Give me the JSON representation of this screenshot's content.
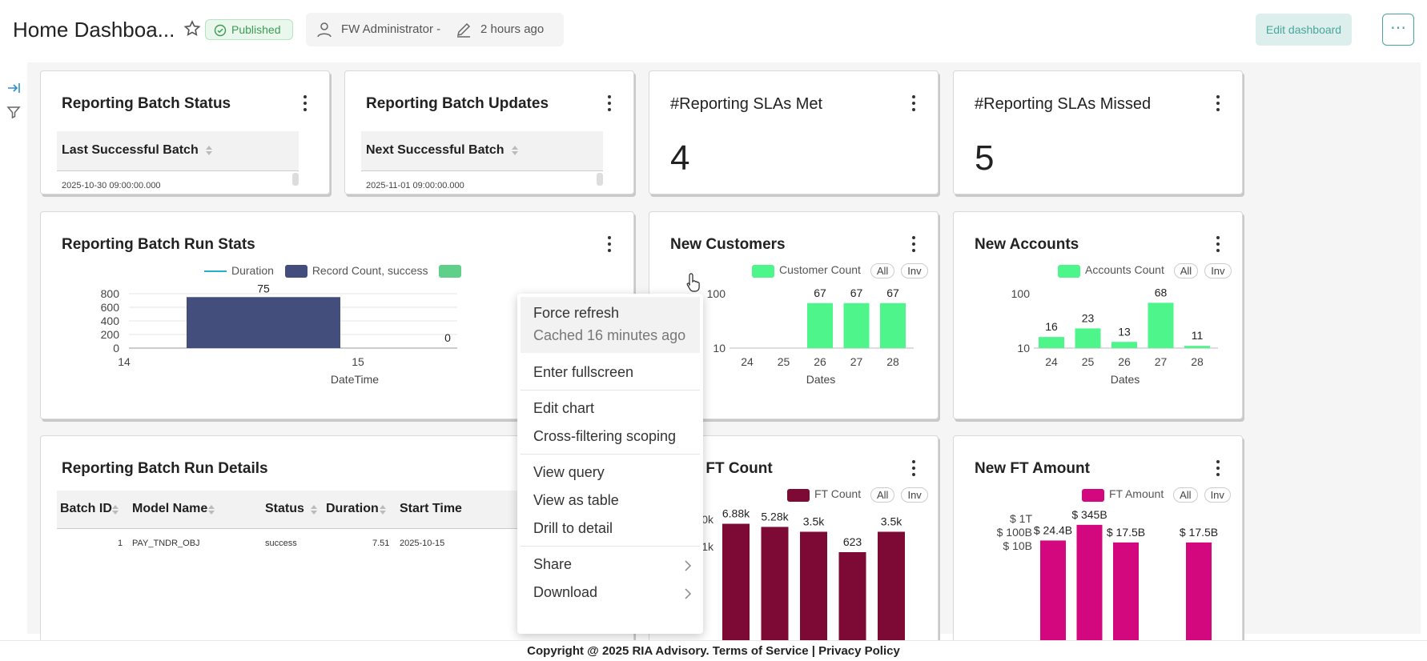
{
  "header": {
    "title": "Home Dashboa...",
    "status_badge": "Published",
    "owner": "FW Administrator -",
    "modified": "2 hours ago",
    "edit_button": "Edit dashboard",
    "more_button": "⋯"
  },
  "cards": {
    "batch_status": {
      "title": "Reporting Batch Status",
      "column": "Last Successful Batch",
      "value": "2025-10-30 09:00:00.000"
    },
    "batch_updates": {
      "title": "Reporting Batch Updates",
      "column": "Next Successful Batch",
      "value": "2025-11-01 09:00:00.000"
    },
    "slas_met": {
      "title": "#Reporting SLAs Met",
      "value": "4"
    },
    "slas_missed": {
      "title": "#Reporting SLAs Missed",
      "value": "5"
    },
    "run_stats": {
      "title": "Reporting Batch Run Stats",
      "legend": [
        "Duration",
        "Record Count, success"
      ],
      "xlabel": "DateTime"
    },
    "new_customers": {
      "title": "New Customers",
      "legend": "Customer Count",
      "pill_all": "All",
      "pill_inv": "Inv",
      "xlabel": "Dates"
    },
    "new_accounts": {
      "title": "New Accounts",
      "legend": "Accounts Count",
      "pill_all": "All",
      "pill_inv": "Inv",
      "xlabel": "Dates"
    },
    "run_details": {
      "title": "Reporting Batch Run Details",
      "columns": [
        "Batch ID",
        "Model Name",
        "Status",
        "Duration",
        "Start Time"
      ],
      "rows": [
        {
          "batch_id": "1",
          "model_name": "PAY_TNDR_OBJ",
          "status": "success",
          "duration": "7.51",
          "start_time": "2025-10-15"
        }
      ]
    },
    "ft_count": {
      "title": "New FT Count",
      "legend": "FT Count",
      "pill_all": "All",
      "pill_inv": "Inv"
    },
    "ft_amount": {
      "title": "New FT Amount",
      "legend": "FT Amount",
      "pill_all": "All",
      "pill_inv": "Inv"
    }
  },
  "context_menu": {
    "force_refresh": "Force refresh",
    "cached": "Cached 16 minutes ago",
    "fullscreen": "Enter fullscreen",
    "edit_chart": "Edit chart",
    "cross_filter": "Cross-filtering scoping",
    "view_query": "View query",
    "view_table": "View as table",
    "drill": "Drill to detail",
    "share": "Share",
    "download": "Download"
  },
  "footer": "Copyright @ 2025 RIA Advisory. Terms of Service | Privacy Policy",
  "colors": {
    "accent": "#4aa59b",
    "record_count": "#434e7d",
    "green_bar": "#4df58a",
    "ft_count": "#7d0a35",
    "ft_amount": "#d4087e",
    "duration_line": "#20b2c8"
  },
  "chart_data": [
    {
      "type": "bar",
      "name": "run_stats",
      "x_ticks": [
        "14",
        "15"
      ],
      "y_ticks": [
        0,
        200,
        400,
        600,
        800
      ],
      "ylim": [
        0,
        800
      ],
      "series": [
        {
          "name": "Record Count, success",
          "values": [
            750
          ]
        }
      ],
      "data_labels": [
        "75",
        "0"
      ],
      "xlabel": "DateTime"
    },
    {
      "type": "bar",
      "name": "new_customers",
      "categories": [
        "24",
        "25",
        "26",
        "27",
        "28"
      ],
      "values": [
        null,
        null,
        67,
        67,
        67
      ],
      "y_scale": "log",
      "y_ticks": [
        10,
        100
      ],
      "xlabel": "Dates"
    },
    {
      "type": "bar",
      "name": "new_accounts",
      "categories": [
        "24",
        "25",
        "26",
        "27",
        "28"
      ],
      "values": [
        16,
        23,
        13,
        68,
        11
      ],
      "y_scale": "log",
      "y_ticks": [
        10,
        100
      ],
      "xlabel": "Dates"
    },
    {
      "type": "bar",
      "name": "ft_count",
      "labels": [
        "6.88k",
        "5.28k",
        "3.5k",
        "623",
        "3.5k"
      ],
      "values": [
        6880,
        5280,
        3500,
        623,
        3500
      ],
      "y_scale": "log",
      "y_ticks": [
        "1k",
        "10k"
      ]
    },
    {
      "type": "bar",
      "name": "ft_amount",
      "labels": [
        "$ 24.4B",
        "$ 345B",
        "$ 17.5B",
        "",
        "$ 17.5B"
      ],
      "values": [
        24.4,
        345,
        17.5,
        null,
        17.5
      ],
      "y_scale": "log",
      "y_ticks": [
        "$ 10B",
        "$ 100B",
        "$ 1T"
      ]
    }
  ]
}
